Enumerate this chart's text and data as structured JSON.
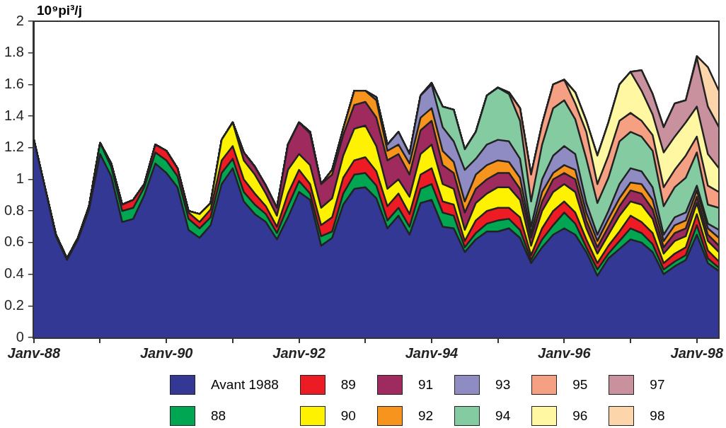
{
  "chart_data": {
    "type": "area",
    "ylabel": "10⁹pi³/j",
    "stacked": true,
    "legend": "bottom",
    "x": [
      "1988-01",
      "1988-03",
      "1988-05",
      "1988-07",
      "1988-09",
      "1988-11",
      "1989-01",
      "1989-03",
      "1989-05",
      "1989-07",
      "1989-09",
      "1989-11",
      "1990-01",
      "1990-03",
      "1990-05",
      "1990-07",
      "1990-09",
      "1990-11",
      "1991-01",
      "1991-03",
      "1991-05",
      "1991-07",
      "1991-09",
      "1991-11",
      "1992-01",
      "1992-03",
      "1992-05",
      "1992-07",
      "1992-09",
      "1992-11",
      "1993-01",
      "1993-03",
      "1993-05",
      "1993-07",
      "1993-09",
      "1993-11",
      "1994-01",
      "1994-03",
      "1994-05",
      "1994-07",
      "1994-09",
      "1994-11",
      "1995-01",
      "1995-03",
      "1995-05",
      "1995-07",
      "1995-09",
      "1995-11",
      "1996-01",
      "1996-03",
      "1996-05",
      "1996-07",
      "1996-09",
      "1996-11",
      "1997-01",
      "1997-03",
      "1997-05",
      "1997-07",
      "1997-09",
      "1997-11",
      "1998-01",
      "1998-03",
      "1998-05"
    ],
    "xlim": [
      "1988-01",
      "1998-05"
    ],
    "xticks": [
      {
        "value": "1988-01",
        "label": "Janv-88"
      },
      {
        "value": "1989-01",
        "label": null
      },
      {
        "value": "1990-01",
        "label": "Janv-90"
      },
      {
        "value": "1991-01",
        "label": null
      },
      {
        "value": "1992-01",
        "label": "Janv-92"
      },
      {
        "value": "1993-01",
        "label": null
      },
      {
        "value": "1994-01",
        "label": "Janv-94"
      },
      {
        "value": "1995-01",
        "label": null
      },
      {
        "value": "1996-01",
        "label": "Janv-96"
      },
      {
        "value": "1997-01",
        "label": null
      },
      {
        "value": "1998-01",
        "label": "Janv-98"
      }
    ],
    "ylim": [
      0,
      2
    ],
    "yticks": [
      0,
      0.2,
      0.4,
      0.6,
      0.8,
      1,
      1.2,
      1.4,
      1.6,
      1.8,
      2
    ],
    "series": [
      {
        "name": "Avant 1988",
        "color": "#333894",
        "values": [
          1.25,
          0.95,
          0.64,
          0.49,
          0.62,
          0.81,
          1.16,
          1.02,
          0.73,
          0.75,
          0.9,
          1.1,
          1.04,
          0.95,
          0.68,
          0.63,
          0.71,
          0.97,
          1.07,
          0.86,
          0.78,
          0.73,
          0.62,
          0.76,
          0.92,
          0.87,
          0.58,
          0.63,
          0.84,
          0.94,
          0.95,
          0.88,
          0.69,
          0.77,
          0.65,
          0.85,
          0.87,
          0.7,
          0.69,
          0.54,
          0.62,
          0.67,
          0.67,
          0.69,
          0.63,
          0.47,
          0.57,
          0.65,
          0.69,
          0.65,
          0.54,
          0.39,
          0.5,
          0.56,
          0.62,
          0.6,
          0.54,
          0.4,
          0.45,
          0.49,
          0.65,
          0.47,
          0.42
        ]
      },
      {
        "name": "88",
        "color": "#00a651",
        "values": [
          0,
          0,
          0.01,
          0.01,
          0.01,
          0.02,
          0.07,
          0.06,
          0.07,
          0.07,
          0.05,
          0.07,
          0.08,
          0.07,
          0.07,
          0.06,
          0.05,
          0.07,
          0.06,
          0.06,
          0.06,
          0.05,
          0.04,
          0.07,
          0.07,
          0.04,
          0.06,
          0.04,
          0.07,
          0.09,
          0.09,
          0.08,
          0.05,
          0.05,
          0.05,
          0.09,
          0.1,
          0.09,
          0.08,
          0.03,
          0.04,
          0.05,
          0.07,
          0.06,
          0.05,
          0.02,
          0.05,
          0.06,
          0.1,
          0.07,
          0.03,
          0.04,
          0.03,
          0.05,
          0.07,
          0.06,
          0.05,
          0.03,
          0.03,
          0.03,
          0.06,
          0.03,
          0.02
        ]
      },
      {
        "name": "89",
        "color": "#ed1c24",
        "values": [
          0,
          0,
          0,
          0,
          0,
          0,
          0,
          0.02,
          0.04,
          0.05,
          0.02,
          0.05,
          0.06,
          0.05,
          0.04,
          0.04,
          0.05,
          0.08,
          0.08,
          0.08,
          0.07,
          0.05,
          0.04,
          0.08,
          0.07,
          0.06,
          0.07,
          0.09,
          0.1,
          0.09,
          0.1,
          0.09,
          0.09,
          0.09,
          0.08,
          0.09,
          0.1,
          0.07,
          0.07,
          0.04,
          0.08,
          0.08,
          0.08,
          0.07,
          0.08,
          0.03,
          0.07,
          0.09,
          0.07,
          0.07,
          0.05,
          0.04,
          0.05,
          0.06,
          0.08,
          0.07,
          0.07,
          0.04,
          0.05,
          0.05,
          0.07,
          0.05,
          0.04
        ]
      },
      {
        "name": "90",
        "color": "#fff200",
        "values": [
          0,
          0,
          0,
          0,
          0,
          0,
          0,
          0,
          0,
          0,
          0,
          0,
          0,
          0,
          0.01,
          0.05,
          0.04,
          0.13,
          0.15,
          0.12,
          0.12,
          0.08,
          0.07,
          0.15,
          0.1,
          0.12,
          0.11,
          0.12,
          0.14,
          0.2,
          0.2,
          0.16,
          0.11,
          0.09,
          0.11,
          0.13,
          0.15,
          0.11,
          0.1,
          0.07,
          0.11,
          0.11,
          0.13,
          0.13,
          0.11,
          0.06,
          0.11,
          0.12,
          0.11,
          0.13,
          0.07,
          0.06,
          0.07,
          0.1,
          0.09,
          0.11,
          0.09,
          0.06,
          0.08,
          0.07,
          0.07,
          0.06,
          0.06
        ]
      },
      {
        "name": "91",
        "color": "#9e2a5e",
        "values": [
          0,
          0,
          0,
          0,
          0,
          0,
          0,
          0,
          0,
          0,
          0,
          0,
          0,
          0,
          0,
          0,
          0,
          0,
          0,
          0.05,
          0.05,
          0.05,
          0.05,
          0.16,
          0.2,
          0.2,
          0.15,
          0.15,
          0.13,
          0.15,
          0.15,
          0.18,
          0.18,
          0.16,
          0.14,
          0.15,
          0.15,
          0.12,
          0.1,
          0.11,
          0.09,
          0.09,
          0.09,
          0.09,
          0.07,
          0.05,
          0.06,
          0.08,
          0.07,
          0.08,
          0.05,
          0.04,
          0.05,
          0.06,
          0.07,
          0.07,
          0.06,
          0.04,
          0.05,
          0.05,
          0.04,
          0.04,
          0.04
        ]
      },
      {
        "name": "92",
        "color": "#f7941d",
        "values": [
          0,
          0,
          0,
          0,
          0,
          0,
          0,
          0,
          0,
          0,
          0,
          0,
          0,
          0,
          0,
          0,
          0,
          0,
          0,
          0,
          0,
          0,
          0,
          0,
          0,
          0.01,
          0,
          0.03,
          0.04,
          0.09,
          0.07,
          0.11,
          0.06,
          0.06,
          0.07,
          0.08,
          0.08,
          0.09,
          0.07,
          0.07,
          0.09,
          0.09,
          0.08,
          0.07,
          0.07,
          0.03,
          0.06,
          0.04,
          0.05,
          0.06,
          0.05,
          0.04,
          0.05,
          0.05,
          0.05,
          0.06,
          0.06,
          0.04,
          0.05,
          0.05,
          0.04,
          0.04,
          0.05
        ]
      },
      {
        "name": "93",
        "color": "#8f8bc3",
        "values": [
          0,
          0,
          0,
          0,
          0,
          0,
          0,
          0,
          0,
          0,
          0,
          0,
          0,
          0,
          0,
          0,
          0,
          0,
          0,
          0,
          0,
          0,
          0,
          0,
          0,
          0,
          0,
          0,
          0,
          0,
          0,
          0.02,
          0.04,
          0.08,
          0.06,
          0.14,
          0.15,
          0.15,
          0.13,
          0.2,
          0.1,
          0.13,
          0.13,
          0.13,
          0.12,
          0.04,
          0.08,
          0.11,
          0.12,
          0.1,
          0.06,
          0.04,
          0.05,
          0.09,
          0.09,
          0.08,
          0.08,
          0.04,
          0.05,
          0.05,
          0.03,
          0.03,
          0.05
        ]
      },
      {
        "name": "94",
        "color": "#84cba2",
        "values": [
          0,
          0,
          0,
          0,
          0,
          0,
          0,
          0,
          0,
          0,
          0,
          0,
          0,
          0,
          0,
          0,
          0,
          0,
          0,
          0,
          0,
          0,
          0,
          0,
          0,
          0,
          0,
          0,
          0,
          0,
          0,
          0,
          0,
          0,
          0,
          0,
          0.01,
          0.13,
          0.2,
          0.13,
          0.17,
          0.31,
          0.33,
          0.3,
          0.24,
          0.16,
          0.22,
          0.3,
          0.29,
          0.22,
          0.28,
          0.2,
          0.21,
          0.27,
          0.23,
          0.22,
          0.23,
          0.18,
          0.19,
          0.22,
          0.21,
          0.12,
          0.14
        ]
      },
      {
        "name": "95",
        "color": "#f5a083",
        "values": [
          0,
          0,
          0,
          0,
          0,
          0,
          0,
          0,
          0,
          0,
          0,
          0,
          0,
          0,
          0,
          0,
          0,
          0,
          0,
          0,
          0,
          0,
          0,
          0,
          0,
          0,
          0,
          0,
          0,
          0,
          0,
          0,
          0,
          0,
          0,
          0,
          0,
          0,
          0,
          0,
          0,
          0,
          0,
          0.01,
          0.08,
          0.17,
          0.13,
          0.15,
          0.13,
          0.1,
          0.17,
          0.12,
          0.14,
          0.13,
          0.12,
          0.1,
          0.1,
          0.12,
          0.11,
          0.14,
          0.1,
          0.12,
          0.1
        ]
      },
      {
        "name": "96",
        "color": "#fff7a1",
        "values": [
          0,
          0,
          0,
          0,
          0,
          0,
          0,
          0,
          0,
          0,
          0,
          0,
          0,
          0,
          0,
          0,
          0,
          0,
          0,
          0,
          0,
          0,
          0,
          0,
          0,
          0,
          0,
          0,
          0,
          0,
          0,
          0,
          0,
          0,
          0,
          0,
          0,
          0,
          0,
          0,
          0,
          0,
          0,
          0,
          0,
          0,
          0,
          0,
          0,
          0.07,
          0.07,
          0.18,
          0.21,
          0.23,
          0.26,
          0.19,
          0.13,
          0.22,
          0.21,
          0.21,
          0.19,
          0.2,
          0.15
        ]
      },
      {
        "name": "97",
        "color": "#c9909e",
        "values": [
          0,
          0,
          0,
          0,
          0,
          0,
          0,
          0,
          0,
          0,
          0,
          0,
          0,
          0,
          0,
          0,
          0,
          0,
          0,
          0,
          0,
          0,
          0,
          0,
          0,
          0,
          0,
          0,
          0,
          0,
          0,
          0,
          0,
          0,
          0,
          0,
          0,
          0,
          0,
          0,
          0,
          0,
          0,
          0,
          0,
          0,
          0,
          0,
          0,
          0,
          0,
          0,
          0,
          0,
          0,
          0.13,
          0.13,
          0.16,
          0.21,
          0.14,
          0.31,
          0.3,
          0.26
        ]
      },
      {
        "name": "98",
        "color": "#fdd5aa",
        "values": [
          0,
          0,
          0,
          0,
          0,
          0,
          0,
          0,
          0,
          0,
          0,
          0,
          0,
          0,
          0,
          0,
          0,
          0,
          0,
          0,
          0,
          0,
          0,
          0,
          0,
          0,
          0,
          0,
          0,
          0,
          0,
          0,
          0,
          0,
          0,
          0,
          0,
          0,
          0,
          0,
          0,
          0,
          0,
          0,
          0,
          0,
          0,
          0,
          0,
          0,
          0,
          0,
          0,
          0,
          0,
          0,
          0,
          0,
          0,
          0,
          0.01,
          0.25,
          0.23
        ]
      }
    ]
  }
}
